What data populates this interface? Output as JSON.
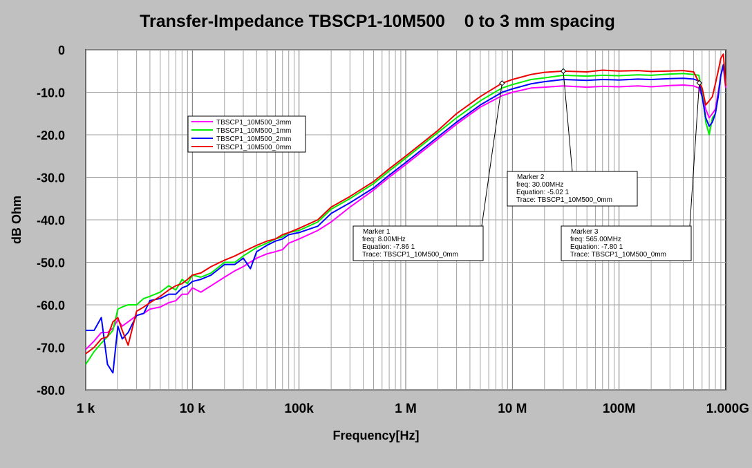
{
  "chart_data": {
    "type": "line",
    "title": "Transfer-Impedance TBSCP1-10M500    0 to 3 mm spacing",
    "xlabel": "Frequency[Hz]",
    "ylabel": "dB Ohm",
    "x_scale": "log",
    "xlim": [
      1000,
      1000000000
    ],
    "ylim": [
      -80,
      0
    ],
    "grid": true,
    "legend_position": "upper-left",
    "x_ticks": [
      {
        "value": 1000,
        "label": "1  k"
      },
      {
        "value": 10000,
        "label": "10 k"
      },
      {
        "value": 100000,
        "label": "100k"
      },
      {
        "value": 1000000,
        "label": "1  M"
      },
      {
        "value": 10000000,
        "label": "10 M"
      },
      {
        "value": 100000000,
        "label": "100M"
      },
      {
        "value": 1000000000,
        "label": "1.000G"
      }
    ],
    "y_ticks": [
      {
        "value": 0,
        "label": "0"
      },
      {
        "value": -10,
        "label": "-10.0"
      },
      {
        "value": -20,
        "label": "-20.0"
      },
      {
        "value": -30,
        "label": "-30.0"
      },
      {
        "value": -40,
        "label": "-40.0"
      },
      {
        "value": -50,
        "label": "-50.0"
      },
      {
        "value": -60,
        "label": "-60.0"
      },
      {
        "value": -70,
        "label": "-70.0"
      },
      {
        "value": -80,
        "label": "-80.0"
      }
    ],
    "series": [
      {
        "name": "TBSCP1_10M500_3mm",
        "color": "#ff00ff",
        "points": [
          [
            1000,
            -70.5
          ],
          [
            1200,
            -68.5
          ],
          [
            1400,
            -66.5
          ],
          [
            1600,
            -66.5
          ],
          [
            1800,
            -65.5
          ],
          [
            2000,
            -63.5
          ],
          [
            2200,
            -65
          ],
          [
            2500,
            -64
          ],
          [
            3000,
            -62.5
          ],
          [
            3500,
            -62
          ],
          [
            4000,
            -61
          ],
          [
            5000,
            -60.5
          ],
          [
            6000,
            -59.5
          ],
          [
            7000,
            -59
          ],
          [
            8000,
            -57.5
          ],
          [
            9000,
            -57.5
          ],
          [
            10000,
            -56
          ],
          [
            12000,
            -57
          ],
          [
            15000,
            -55.5
          ],
          [
            20000,
            -53.5
          ],
          [
            25000,
            -52
          ],
          [
            30000,
            -51
          ],
          [
            40000,
            -49
          ],
          [
            50000,
            -48
          ],
          [
            60000,
            -47.5
          ],
          [
            70000,
            -47
          ],
          [
            80000,
            -45.5
          ],
          [
            100000,
            -44.5
          ],
          [
            150000,
            -42.5
          ],
          [
            200000,
            -40.5
          ],
          [
            300000,
            -37
          ],
          [
            500000,
            -33
          ],
          [
            700000,
            -30
          ],
          [
            1000000,
            -27
          ],
          [
            2000000,
            -21
          ],
          [
            3000000,
            -17.5
          ],
          [
            5000000,
            -13.5
          ],
          [
            8000000,
            -10.8
          ],
          [
            10000000,
            -10
          ],
          [
            15000000,
            -9
          ],
          [
            20000000,
            -8.8
          ],
          [
            30000000,
            -8.5
          ],
          [
            50000000,
            -8.8
          ],
          [
            70000000,
            -8.6
          ],
          [
            100000000,
            -8.7
          ],
          [
            150000000,
            -8.5
          ],
          [
            200000000,
            -8.7
          ],
          [
            300000000,
            -8.4
          ],
          [
            400000000,
            -8.3
          ],
          [
            500000000,
            -8.5
          ],
          [
            560000000,
            -9
          ],
          [
            600000000,
            -11
          ],
          [
            650000000,
            -14
          ],
          [
            700000000,
            -16
          ],
          [
            750000000,
            -15
          ],
          [
            800000000,
            -14
          ],
          [
            850000000,
            -10
          ],
          [
            900000000,
            -6
          ],
          [
            950000000,
            -4
          ],
          [
            1000000000,
            -9
          ]
        ]
      },
      {
        "name": "TBSCP1_10M500_1mm",
        "color": "#00ee00",
        "points": [
          [
            1000,
            -74
          ],
          [
            1200,
            -71
          ],
          [
            1400,
            -69
          ],
          [
            1600,
            -67.5
          ],
          [
            1800,
            -66
          ],
          [
            2000,
            -61
          ],
          [
            2200,
            -60.5
          ],
          [
            2500,
            -60
          ],
          [
            3000,
            -60
          ],
          [
            3500,
            -58.5
          ],
          [
            4000,
            -58
          ],
          [
            5000,
            -57
          ],
          [
            6000,
            -55.5
          ],
          [
            7000,
            -56.5
          ],
          [
            8000,
            -54
          ],
          [
            9000,
            -55
          ],
          [
            10000,
            -53
          ],
          [
            12000,
            -53.5
          ],
          [
            15000,
            -52.5
          ],
          [
            20000,
            -50
          ],
          [
            25000,
            -50
          ],
          [
            30000,
            -48.5
          ],
          [
            40000,
            -46.5
          ],
          [
            50000,
            -45.5
          ],
          [
            60000,
            -44.5
          ],
          [
            70000,
            -44
          ],
          [
            80000,
            -43
          ],
          [
            100000,
            -42.5
          ],
          [
            150000,
            -40.5
          ],
          [
            200000,
            -37.5
          ],
          [
            300000,
            -35
          ],
          [
            500000,
            -31.5
          ],
          [
            700000,
            -28.5
          ],
          [
            1000000,
            -25.5
          ],
          [
            2000000,
            -19.5
          ],
          [
            3000000,
            -16
          ],
          [
            5000000,
            -12
          ],
          [
            8000000,
            -9
          ],
          [
            10000000,
            -8.2
          ],
          [
            15000000,
            -7
          ],
          [
            20000000,
            -6.6
          ],
          [
            30000000,
            -6
          ],
          [
            50000000,
            -6.2
          ],
          [
            70000000,
            -6
          ],
          [
            100000000,
            -6.1
          ],
          [
            150000000,
            -5.9
          ],
          [
            200000000,
            -6
          ],
          [
            300000000,
            -5.7
          ],
          [
            400000000,
            -5.6
          ],
          [
            500000000,
            -5.8
          ],
          [
            560000000,
            -6
          ],
          [
            600000000,
            -10
          ],
          [
            650000000,
            -17
          ],
          [
            700000000,
            -20
          ],
          [
            750000000,
            -16
          ],
          [
            800000000,
            -15
          ],
          [
            850000000,
            -11
          ],
          [
            900000000,
            -6
          ],
          [
            950000000,
            -3.5
          ],
          [
            1000000000,
            -8
          ]
        ]
      },
      {
        "name": "TBSCP1_10M500_2mm",
        "color": "#0000ff",
        "points": [
          [
            1000,
            -66
          ],
          [
            1200,
            -66
          ],
          [
            1400,
            -63
          ],
          [
            1600,
            -74
          ],
          [
            1800,
            -76
          ],
          [
            2000,
            -65
          ],
          [
            2200,
            -68
          ],
          [
            2500,
            -66.5
          ],
          [
            3000,
            -62.5
          ],
          [
            3500,
            -62
          ],
          [
            4000,
            -59
          ],
          [
            5000,
            -58.5
          ],
          [
            6000,
            -57.5
          ],
          [
            7000,
            -57.5
          ],
          [
            8000,
            -56
          ],
          [
            9000,
            -55.5
          ],
          [
            10000,
            -54.5
          ],
          [
            12000,
            -54
          ],
          [
            15000,
            -53
          ],
          [
            20000,
            -50.5
          ],
          [
            25000,
            -50.5
          ],
          [
            30000,
            -49
          ],
          [
            35000,
            -51.5
          ],
          [
            40000,
            -47.5
          ],
          [
            50000,
            -46
          ],
          [
            60000,
            -45
          ],
          [
            70000,
            -44.5
          ],
          [
            80000,
            -43.5
          ],
          [
            100000,
            -43
          ],
          [
            150000,
            -41.5
          ],
          [
            200000,
            -38.5
          ],
          [
            300000,
            -36
          ],
          [
            500000,
            -32.5
          ],
          [
            700000,
            -29.5
          ],
          [
            1000000,
            -26.5
          ],
          [
            2000000,
            -20.5
          ],
          [
            3000000,
            -17
          ],
          [
            5000000,
            -13
          ],
          [
            8000000,
            -10
          ],
          [
            10000000,
            -9.2
          ],
          [
            15000000,
            -8
          ],
          [
            20000000,
            -7.5
          ],
          [
            30000000,
            -7
          ],
          [
            50000000,
            -7.2
          ],
          [
            70000000,
            -7
          ],
          [
            100000000,
            -7.1
          ],
          [
            150000000,
            -6.9
          ],
          [
            200000000,
            -7
          ],
          [
            300000000,
            -6.8
          ],
          [
            400000000,
            -6.7
          ],
          [
            500000000,
            -6.9
          ],
          [
            560000000,
            -7.3
          ],
          [
            600000000,
            -11
          ],
          [
            650000000,
            -16
          ],
          [
            700000000,
            -18
          ],
          [
            750000000,
            -17
          ],
          [
            800000000,
            -15
          ],
          [
            850000000,
            -11
          ],
          [
            900000000,
            -6
          ],
          [
            950000000,
            -3.5
          ],
          [
            1000000000,
            -8.5
          ]
        ]
      },
      {
        "name": "TBSCP1_10M500_0mm",
        "color": "#ee0000",
        "points": [
          [
            1000,
            -71.5
          ],
          [
            1200,
            -70
          ],
          [
            1400,
            -68
          ],
          [
            1600,
            -67.5
          ],
          [
            1800,
            -64
          ],
          [
            2000,
            -63
          ],
          [
            2200,
            -66
          ],
          [
            2500,
            -69.5
          ],
          [
            3000,
            -61.5
          ],
          [
            3500,
            -60.5
          ],
          [
            4000,
            -59.5
          ],
          [
            5000,
            -58
          ],
          [
            6000,
            -56.5
          ],
          [
            7000,
            -55.5
          ],
          [
            8000,
            -55
          ],
          [
            9000,
            -54
          ],
          [
            10000,
            -53
          ],
          [
            12000,
            -52.5
          ],
          [
            15000,
            -51
          ],
          [
            20000,
            -49.5
          ],
          [
            25000,
            -48.5
          ],
          [
            30000,
            -47.5
          ],
          [
            40000,
            -46
          ],
          [
            50000,
            -45
          ],
          [
            60000,
            -44.5
          ],
          [
            70000,
            -43.5
          ],
          [
            80000,
            -43
          ],
          [
            100000,
            -42
          ],
          [
            150000,
            -40
          ],
          [
            200000,
            -37
          ],
          [
            300000,
            -34.5
          ],
          [
            500000,
            -31
          ],
          [
            700000,
            -28
          ],
          [
            1000000,
            -25
          ],
          [
            2000000,
            -19
          ],
          [
            3000000,
            -15
          ],
          [
            5000000,
            -11
          ],
          [
            8000000,
            -7.86
          ],
          [
            10000000,
            -7
          ],
          [
            15000000,
            -5.8
          ],
          [
            20000000,
            -5.3
          ],
          [
            30000000,
            -5.02
          ],
          [
            50000000,
            -5.2
          ],
          [
            70000000,
            -4.8
          ],
          [
            100000000,
            -5
          ],
          [
            150000000,
            -4.9
          ],
          [
            200000000,
            -5.1
          ],
          [
            300000000,
            -5
          ],
          [
            400000000,
            -4.9
          ],
          [
            500000000,
            -5.2
          ],
          [
            565000000,
            -7.8
          ],
          [
            600000000,
            -9
          ],
          [
            650000000,
            -13
          ],
          [
            700000000,
            -12
          ],
          [
            750000000,
            -11
          ],
          [
            800000000,
            -8
          ],
          [
            850000000,
            -5
          ],
          [
            900000000,
            -2
          ],
          [
            950000000,
            -1
          ],
          [
            1000000000,
            -8.5
          ]
        ]
      }
    ],
    "markers": [
      {
        "title": "Marker 1",
        "freq": "freq: 8.00MHz",
        "equation": "Equation: -7.86 1",
        "trace": "Trace: TBSCP1_10M500_0mm",
        "x": 8000000,
        "y": -7.86
      },
      {
        "title": "Marker 2",
        "freq": "freq: 30.00MHz",
        "equation": "Equation: -5.02 1",
        "trace": "Trace: TBSCP1_10M500_0mm",
        "x": 30000000,
        "y": -5.02
      },
      {
        "title": "Marker 3",
        "freq": "freq: 565.00MHz",
        "equation": "Equation: -7.80 1",
        "trace": "Trace: TBSCP1_10M500_0mm",
        "x": 565000000,
        "y": -7.8
      }
    ],
    "colors": {
      "background": "#c0c0c0",
      "plot_area": "#ffffff",
      "grid": "#a0a0a0",
      "text": "#000000"
    }
  }
}
